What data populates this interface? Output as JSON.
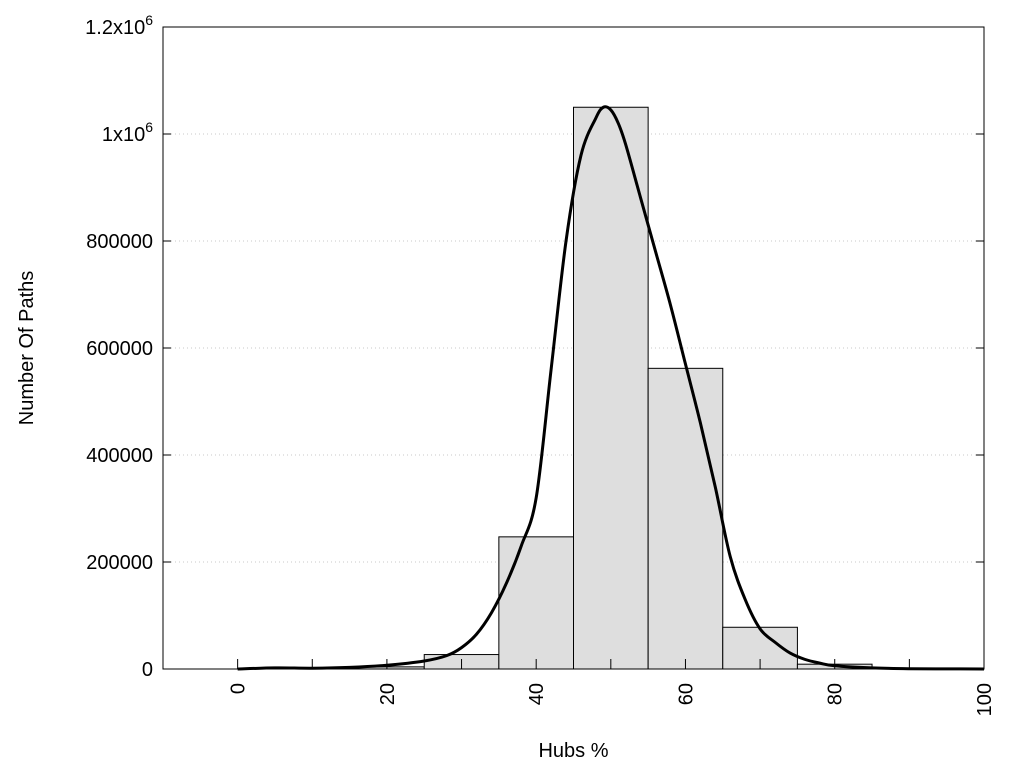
{
  "chart_data": {
    "type": "bar",
    "xlabel": "Hubs %",
    "ylabel": "Number Of Paths",
    "xlim": [
      -10,
      100
    ],
    "ylim": [
      0,
      1200000
    ],
    "grid": "horizontal-dotted",
    "x_ticks": [
      {
        "value": 0,
        "label": "0"
      },
      {
        "value": 20,
        "label": "20"
      },
      {
        "value": 40,
        "label": "40"
      },
      {
        "value": 60,
        "label": "60"
      },
      {
        "value": 80,
        "label": "80"
      },
      {
        "value": 100,
        "label": "100"
      }
    ],
    "x_minor_ticks": [
      10,
      30,
      50,
      70,
      90
    ],
    "y_ticks": [
      {
        "value": 0,
        "label": "0"
      },
      {
        "value": 200000,
        "label": "200000"
      },
      {
        "value": 400000,
        "label": "400000"
      },
      {
        "value": 600000,
        "label": "600000"
      },
      {
        "value": 800000,
        "label": "800000"
      },
      {
        "value": 1000000,
        "label": "1x10",
        "sup": "6"
      },
      {
        "value": 1200000,
        "label": "1.2x10",
        "sup": "6"
      }
    ],
    "bars": [
      {
        "x0": 0,
        "x1": 5,
        "value": 1000
      },
      {
        "x0": 5,
        "x1": 15,
        "value": 1500
      },
      {
        "x0": 15,
        "x1": 25,
        "value": 4000
      },
      {
        "x0": 25,
        "x1": 35,
        "value": 27000
      },
      {
        "x0": 35,
        "x1": 45,
        "value": 247000
      },
      {
        "x0": 45,
        "x1": 55,
        "value": 1050000
      },
      {
        "x0": 55,
        "x1": 65,
        "value": 562000
      },
      {
        "x0": 65,
        "x1": 75,
        "value": 78000
      },
      {
        "x0": 75,
        "x1": 85,
        "value": 9000
      },
      {
        "x0": 85,
        "x1": 95,
        "value": 1000
      },
      {
        "x0": 95,
        "x1": 100,
        "value": 500
      }
    ],
    "curve": {
      "x": [
        0,
        5,
        10,
        15,
        20,
        25,
        28,
        30,
        32,
        34,
        36,
        38,
        40,
        42,
        44,
        46,
        48,
        49,
        50,
        51,
        52,
        54,
        56,
        58,
        60,
        62,
        64,
        66,
        68,
        70,
        72,
        74,
        76,
        78,
        80,
        85,
        90,
        95,
        100
      ],
      "y": [
        0,
        2000,
        1500,
        3000,
        7000,
        15000,
        25000,
        40000,
        65000,
        105000,
        160000,
        230000,
        320000,
        560000,
        800000,
        960000,
        1030000,
        1050000,
        1045000,
        1020000,
        980000,
        880000,
        780000,
        680000,
        570000,
        460000,
        340000,
        210000,
        130000,
        75000,
        50000,
        30000,
        18000,
        11000,
        6000,
        2000,
        500,
        200,
        0
      ]
    },
    "colors": {
      "bar_fill": "#dedede",
      "bar_stroke": "#000000",
      "curve": "#000000",
      "grid": "#c8c8c8"
    }
  }
}
